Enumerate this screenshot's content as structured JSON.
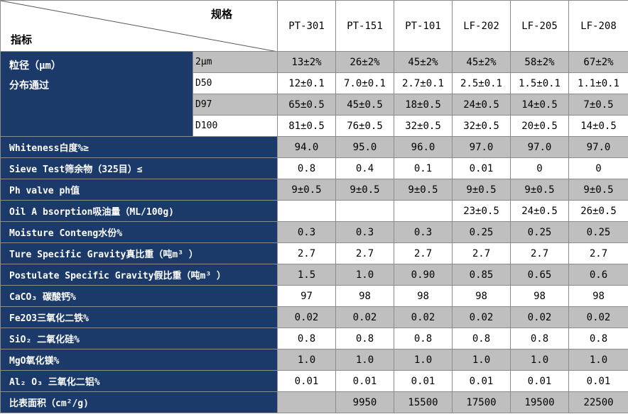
{
  "header": {
    "spec_label": "规格",
    "index_label": "指标",
    "columns": [
      "PT-301",
      "PT-151",
      "PT-101",
      "LF-202",
      "LF-205",
      "LF-208"
    ]
  },
  "particle_size": {
    "label_line1": "粒径（μm）",
    "label_line2": "分布通过",
    "rows": [
      {
        "sub": "2μm",
        "values": [
          "13±2%",
          "26±2%",
          "45±2%",
          "45±2%",
          "58±2%",
          "67±2%"
        ]
      },
      {
        "sub": "D50",
        "values": [
          "12±0.1",
          "7.0±0.1",
          "2.7±0.1",
          "2.5±0.1",
          "1.5±0.1",
          "1.1±0.1"
        ]
      },
      {
        "sub": "D97",
        "values": [
          "65±0.5",
          "45±0.5",
          "18±0.5",
          "24±0.5",
          "14±0.5",
          "7±0.5"
        ]
      },
      {
        "sub": "D100",
        "values": [
          "81±0.5",
          "76±0.5",
          "32±0.5",
          "32±0.5",
          "20±0.5",
          "14±0.5"
        ]
      }
    ]
  },
  "rows": [
    {
      "label": "Whiteness白度%≥",
      "values": [
        "94.0",
        "95.0",
        "96.0",
        "97.0",
        "97.0",
        "97.0"
      ]
    },
    {
      "label": "Sieve Test筛余物（325目）≤",
      "values": [
        "0.8",
        "0.4",
        "0.1",
        "0.01",
        "0",
        "0"
      ]
    },
    {
      "label": "Ph valve ph值",
      "values": [
        "9±0.5",
        "9±0.5",
        "9±0.5",
        "9±0.5",
        "9±0.5",
        "9±0.5"
      ]
    },
    {
      "label": "Oil A bsorption吸油量（ML/100g)",
      "values": [
        "",
        "",
        "",
        "23±0.5",
        "24±0.5",
        "26±0.5"
      ]
    },
    {
      "label": "Moisture Conteng水份%",
      "values": [
        "0.3",
        "0.3",
        "0.3",
        "0.25",
        "0.25",
        "0.25"
      ]
    },
    {
      "label": "Ture Specific Gravity真比重（吨m³ ）",
      "values": [
        "2.7",
        "2.7",
        "2.7",
        "2.7",
        "2.7",
        "2.7"
      ]
    },
    {
      "label": "Postulate Specific Gravity假比重（吨m³ ）",
      "values": [
        "1.5",
        "1.0",
        "0.90",
        "0.85",
        "0.65",
        "0.6"
      ]
    },
    {
      "label": "CaCO₃ 碳酸钙%",
      "values": [
        "97",
        "98",
        "98",
        "98",
        "98",
        "98"
      ]
    },
    {
      "label": "Fe2O3三氧化二铁%",
      "values": [
        "0.02",
        "0.02",
        "0.02",
        "0.02",
        "0.02",
        "0.02"
      ]
    },
    {
      "label": "SiO₂ 二氧化硅%",
      "values": [
        "0.8",
        "0.8",
        "0.8",
        "0.8",
        "0.8",
        "0.8"
      ]
    },
    {
      "label": "MgO氧化镁%",
      "values": [
        "1.0",
        "1.0",
        "1.0",
        "1.0",
        "1.0",
        "1.0"
      ]
    },
    {
      "label": "Al₂ O₃ 三氧化二铝%",
      "values": [
        "0.01",
        "0.01",
        "0.01",
        "0.01",
        "0.01",
        "0.01"
      ]
    },
    {
      "label": "比表面积（cm²/g)",
      "values": [
        "",
        "9950",
        "15500",
        "17500",
        "19500",
        "22500"
      ]
    }
  ]
}
